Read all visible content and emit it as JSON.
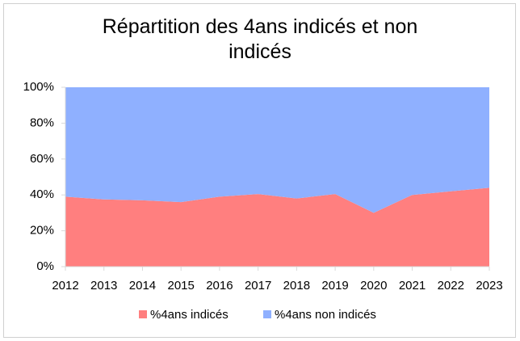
{
  "chart_data": {
    "type": "stacked_area",
    "title": "Répartition des 4ans indicés et non indicés",
    "categories": [
      "2012",
      "2013",
      "2014",
      "2015",
      "2016",
      "2017",
      "2018",
      "2019",
      "2020",
      "2021",
      "2022",
      "2023"
    ],
    "series": [
      {
        "name": "%4ans indicés",
        "color": "#ff7f7f",
        "values": [
          39,
          37.5,
          37,
          36,
          39,
          40.5,
          38,
          40.5,
          30,
          40,
          42,
          44
        ]
      },
      {
        "name": "%4ans non indicés",
        "color": "#8fb0ff",
        "values": [
          61,
          62.5,
          63,
          64,
          61,
          59.5,
          62,
          59.5,
          70,
          60,
          58,
          56
        ]
      }
    ],
    "ylim": [
      0,
      100
    ],
    "yticks": [
      {
        "value": 0,
        "label": "0%"
      },
      {
        "value": 20,
        "label": "20%"
      },
      {
        "value": 40,
        "label": "40%"
      },
      {
        "value": 60,
        "label": "60%"
      },
      {
        "value": 80,
        "label": "80%"
      },
      {
        "value": 100,
        "label": "100%"
      }
    ],
    "legend": "bottom"
  }
}
